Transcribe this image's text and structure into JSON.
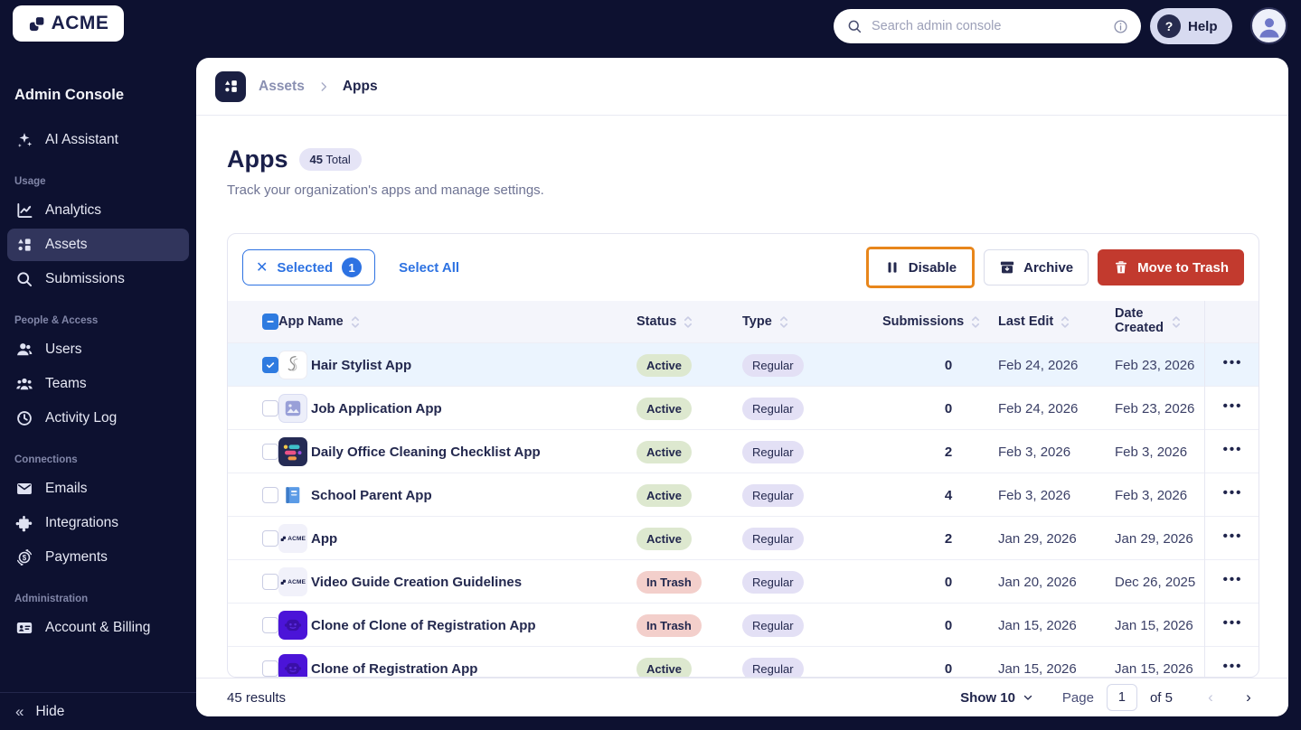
{
  "topbar": {
    "logo_text": "ACME",
    "search_placeholder": "Search admin console",
    "help_label": "Help"
  },
  "sidebar": {
    "title": "Admin Console",
    "assistant_label": "AI Assistant",
    "assistant_icon": "sparkles-icon",
    "sections": [
      {
        "label": "Usage",
        "items": [
          {
            "label": "Analytics",
            "icon": "chart-line-icon",
            "active": false
          },
          {
            "label": "Assets",
            "icon": "grid-shapes-icon",
            "active": true
          },
          {
            "label": "Submissions",
            "icon": "magnifier-icon",
            "active": false
          }
        ]
      },
      {
        "label": "People & Access",
        "items": [
          {
            "label": "Users",
            "icon": "user-icon",
            "active": false
          },
          {
            "label": "Teams",
            "icon": "users-group-icon",
            "active": false
          },
          {
            "label": "Activity Log",
            "icon": "clock-history-icon",
            "active": false
          }
        ]
      },
      {
        "label": "Connections",
        "items": [
          {
            "label": "Emails",
            "icon": "envelope-icon",
            "active": false
          },
          {
            "label": "Integrations",
            "icon": "puzzle-icon",
            "active": false
          },
          {
            "label": "Payments",
            "icon": "currency-circle-icon",
            "active": false
          }
        ]
      },
      {
        "label": "Administration",
        "items": [
          {
            "label": "Account & Billing",
            "icon": "id-card-icon",
            "active": false
          }
        ]
      }
    ],
    "hide_label": "Hide"
  },
  "breadcrumb": {
    "parent": "Assets",
    "current": "Apps"
  },
  "page": {
    "title": "Apps",
    "total_count": "45",
    "total_word": "Total",
    "subtitle": "Track your organization's apps and manage settings."
  },
  "toolbar": {
    "selected_label": "Selected",
    "selected_count": "1",
    "select_all_label": "Select All",
    "disable_label": "Disable",
    "archive_label": "Archive",
    "trash_label": "Move to Trash"
  },
  "table": {
    "columns": [
      "App Name",
      "Status",
      "Type",
      "Submissions",
      "Last Edit",
      "Date Created"
    ],
    "rows": [
      {
        "name": "Hair Stylist App",
        "icon": "hair-app-icon",
        "status": "Active",
        "type": "Regular",
        "submissions": "0",
        "last_edit": "Feb 24, 2026",
        "date_created": "Feb 23, 2026",
        "checked": true
      },
      {
        "name": "Job Application App",
        "icon": "image-app-icon",
        "status": "Active",
        "type": "Regular",
        "submissions": "0",
        "last_edit": "Feb 24, 2026",
        "date_created": "Feb 23, 2026",
        "checked": false
      },
      {
        "name": "Daily Office Cleaning Checklist App",
        "icon": "checklist-app-icon",
        "status": "Active",
        "type": "Regular",
        "submissions": "2",
        "last_edit": "Feb 3, 2026",
        "date_created": "Feb 3, 2026",
        "checked": false
      },
      {
        "name": "School Parent App",
        "icon": "book-app-icon",
        "status": "Active",
        "type": "Regular",
        "submissions": "4",
        "last_edit": "Feb 3, 2026",
        "date_created": "Feb 3, 2026",
        "checked": false
      },
      {
        "name": "App",
        "icon": "acme-app-icon",
        "status": "Active",
        "type": "Regular",
        "submissions": "2",
        "last_edit": "Jan 29, 2026",
        "date_created": "Jan 29, 2026",
        "checked": false
      },
      {
        "name": "Video Guide Creation Guidelines",
        "icon": "acme-app-icon",
        "status": "In Trash",
        "type": "Regular",
        "submissions": "0",
        "last_edit": "Jan 20, 2026",
        "date_created": "Dec 26, 2025",
        "checked": false
      },
      {
        "name": "Clone of Clone of Registration App",
        "icon": "robot-app-icon",
        "status": "In Trash",
        "type": "Regular",
        "submissions": "0",
        "last_edit": "Jan 15, 2026",
        "date_created": "Jan 15, 2026",
        "checked": false
      },
      {
        "name": "Clone of Registration App",
        "icon": "robot-app-icon",
        "status": "Active",
        "type": "Regular",
        "submissions": "0",
        "last_edit": "Jan 15, 2026",
        "date_created": "Jan 15, 2026",
        "checked": false
      }
    ]
  },
  "footer": {
    "results": "45 results",
    "show_label": "Show 10",
    "page_label": "Page",
    "page_value": "1",
    "of_label": "of 5"
  },
  "colors": {
    "accent_blue": "#2D72E2",
    "highlight_orange": "#E8861B",
    "danger_red": "#C23A2E",
    "badge_active_bg": "#DDE8CF",
    "badge_trash_bg": "#F3CFCB",
    "badge_type_bg": "#E3E0F5",
    "navy_bg": "#0D1130",
    "selected_row_bg": "#EBF4FE"
  }
}
